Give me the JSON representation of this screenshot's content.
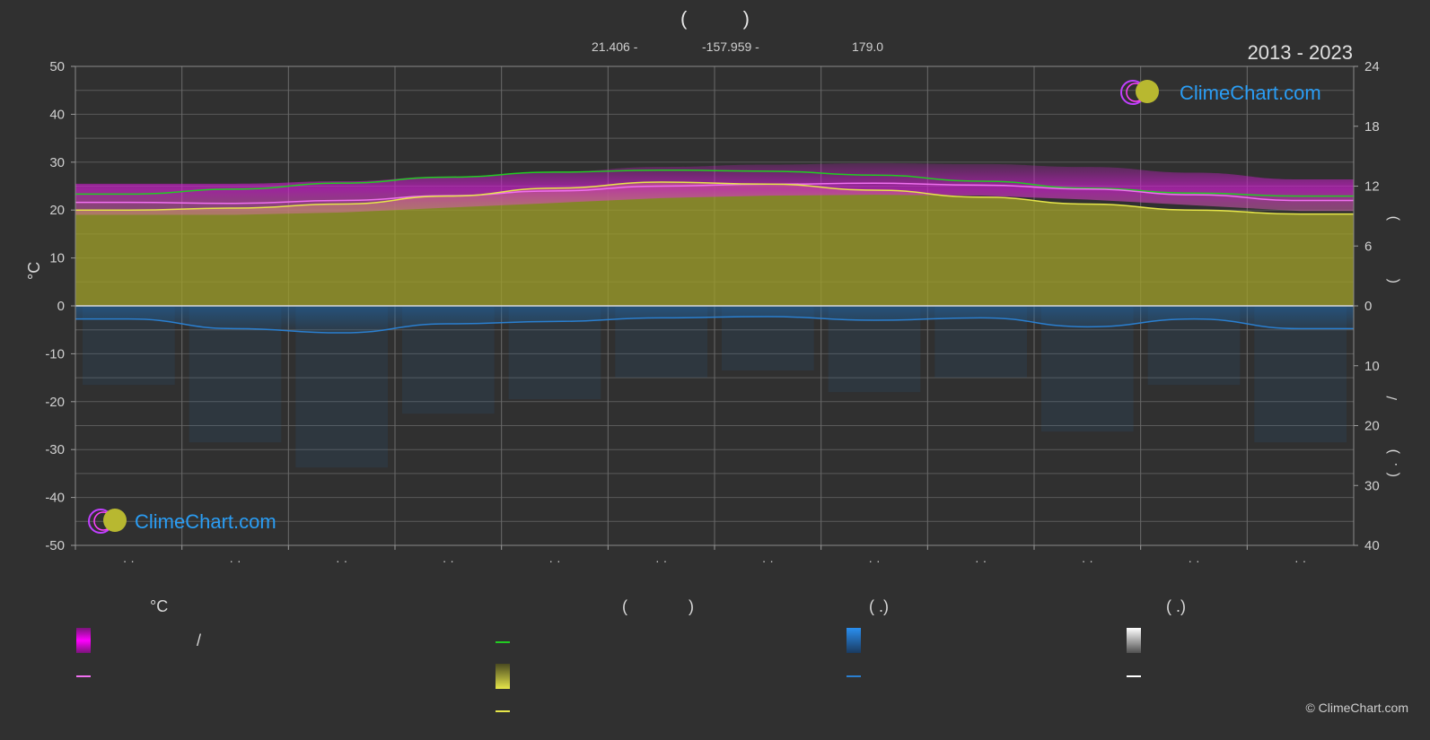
{
  "header": {
    "title_left_paren": "(",
    "title_right_paren": ")",
    "latitude": "21.406 -",
    "longitude": "-157.959 -",
    "elevation": "179.0",
    "period": "2013 - 2023"
  },
  "watermark": {
    "brand": "ClimeChart.com"
  },
  "copyright": "© ClimeChart.com",
  "legend": {
    "col1_head": "°C",
    "col1_slash": "/",
    "col2_head_left": "(",
    "col2_head_right": ")",
    "col3_head": "(   .)",
    "col4_head": "(   .)"
  },
  "right_axis_glyphs": [
    ")",
    "(",
    "/",
    ")",
    "(",
    "."
  ],
  "colors": {
    "background": "#303030",
    "grid": "#5a5a5a",
    "sunshine_fill": "#a0a028",
    "temp_range": "#d01ed0",
    "temp_mean_line": "#f070f0",
    "daylight_line": "#22cc22",
    "sunshine_line": "#e6e64a",
    "precip_line": "#2a7fd0",
    "precip_bar": "#1e6ab0",
    "snow_line": "#ffffff"
  },
  "chart_data": {
    "type": "area",
    "months": 12,
    "x_tick_labels": [
      "· ·",
      "· ·",
      "· ·",
      "· ·",
      "· ·",
      "· ·",
      "· ·",
      "· ·",
      "· ·",
      "· ·",
      "· ·",
      "· ·"
    ],
    "left_axis": {
      "label": "°C",
      "range": [
        -50,
        50
      ],
      "ticks": [
        50,
        40,
        30,
        20,
        10,
        0,
        -10,
        -20,
        -30,
        -40,
        -50
      ]
    },
    "right_axis_top": {
      "range": [
        0,
        24
      ],
      "ticks": [
        24,
        18,
        12,
        6,
        0
      ]
    },
    "right_axis_bottom": {
      "range": [
        0,
        40
      ],
      "ticks": [
        0,
        10,
        20,
        30,
        40
      ]
    },
    "grid": true,
    "series": [
      {
        "key": "daylight",
        "axis": "right_top",
        "values": [
          11.2,
          11.7,
          12.3,
          12.9,
          13.4,
          13.6,
          13.5,
          13.1,
          12.5,
          11.8,
          11.3,
          11.0
        ]
      },
      {
        "key": "sunshine",
        "axis": "right_top",
        "values": [
          9.6,
          9.8,
          10.2,
          11.0,
          11.8,
          12.4,
          12.2,
          11.6,
          10.9,
          10.2,
          9.6,
          9.2
        ]
      },
      {
        "key": "temp_mean",
        "axis": "left",
        "values": [
          21.6,
          21.4,
          22.0,
          23.0,
          24.0,
          25.0,
          25.4,
          25.6,
          25.2,
          24.4,
          23.2,
          22.0
        ]
      },
      {
        "key": "temp_max",
        "axis": "left",
        "values": [
          25.5,
          25.5,
          26.0,
          27.0,
          28.0,
          29.0,
          29.5,
          29.8,
          29.6,
          29.0,
          27.8,
          26.4
        ]
      },
      {
        "key": "temp_min",
        "axis": "left",
        "values": [
          19.0,
          19.0,
          19.5,
          20.5,
          21.5,
          22.5,
          23.0,
          23.2,
          23.0,
          22.2,
          21.0,
          19.8
        ]
      },
      {
        "key": "precipitation",
        "axis": "right_bottom",
        "values": [
          2.2,
          3.8,
          4.5,
          3.0,
          2.6,
          2.0,
          1.8,
          2.4,
          2.0,
          3.5,
          2.2,
          3.8
        ]
      },
      {
        "key": "snow",
        "axis": "right_bottom",
        "values": [
          0,
          0,
          0,
          0,
          0,
          0,
          0,
          0,
          0,
          0,
          0,
          0
        ]
      }
    ]
  }
}
